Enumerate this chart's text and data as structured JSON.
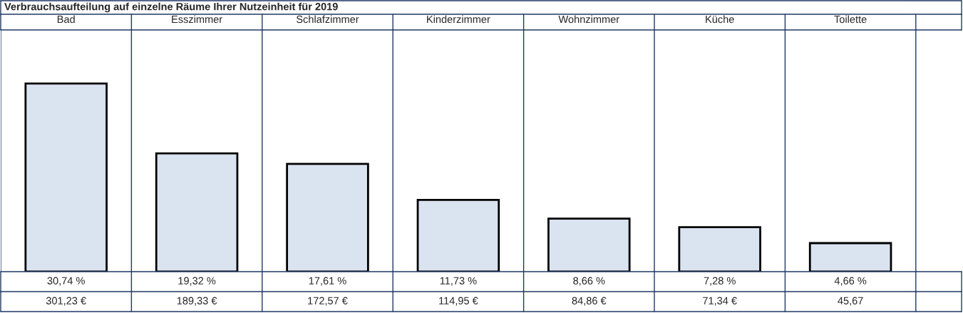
{
  "chart_data": {
    "type": "bar",
    "title": "Verbrauchsaufteilung auf einzelne Räume Ihrer Nutzeinheit für 2019",
    "categories": [
      "Bad",
      "Esszimmer",
      "Schlafzimmer",
      "Kinderzimmer",
      "Wohnzimmer",
      "Küche",
      "Toilette"
    ],
    "values": [
      30.74,
      19.32,
      17.61,
      11.73,
      8.66,
      7.28,
      4.66
    ],
    "value_labels": [
      "30,74 %",
      "19,32 %",
      "17,61 %",
      "11,73 %",
      "8,66 %",
      "7,28 %",
      "4,66 %"
    ],
    "annotations": [
      "301,23 €",
      "189,33 €",
      "172,57 €",
      "114,95 €",
      "84,86 €",
      "71,34 €",
      "45,67"
    ],
    "color": "#dae3f0",
    "ylim": [
      0,
      39.5
    ]
  }
}
